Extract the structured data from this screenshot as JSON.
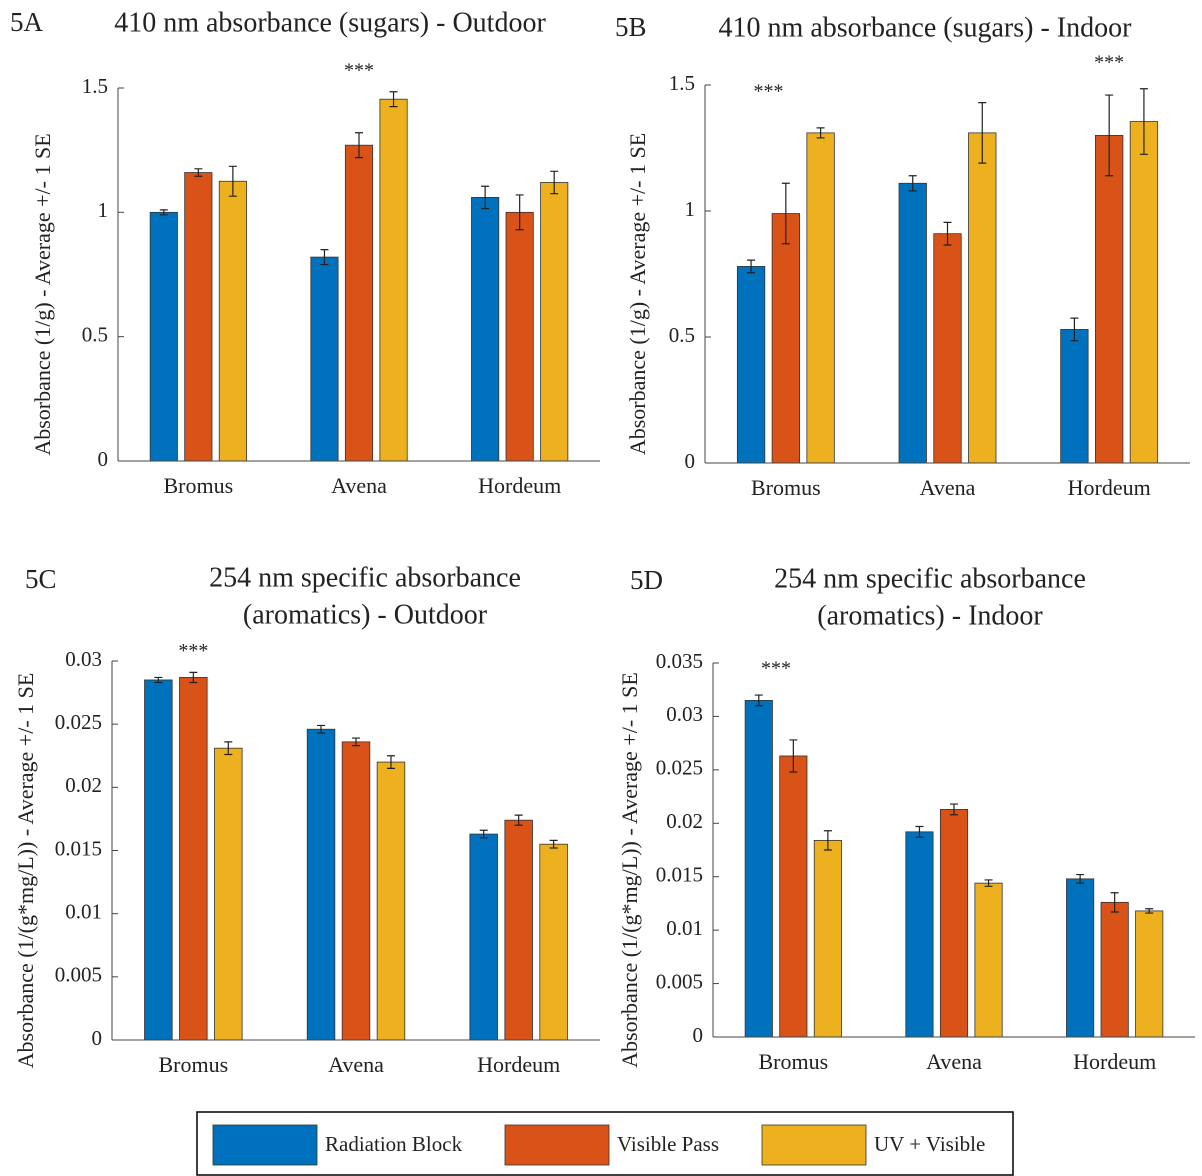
{
  "chart_data": [
    {
      "type": "bar",
      "label": "5A",
      "title": [
        "410 nm absorbance (sugars) - Outdoor"
      ],
      "y_label": "Absorbance (1/g) - Average +/- 1 SE",
      "categories": [
        "Bromus",
        "Avena",
        "Hordeum"
      ],
      "series": [
        {
          "name": "Radiation Block",
          "color": "#0072bd",
          "values": [
            1.0,
            0.82,
            1.06
          ],
          "errors": [
            0.01,
            0.03,
            0.045
          ]
        },
        {
          "name": "Visible Pass",
          "color": "#d95319",
          "values": [
            1.16,
            1.27,
            1.0
          ],
          "errors": [
            0.015,
            0.05,
            0.07
          ]
        },
        {
          "name": "UV + Visible",
          "color": "#edb120",
          "values": [
            1.125,
            1.455,
            1.12
          ],
          "errors": [
            0.06,
            0.03,
            0.045
          ]
        }
      ],
      "ylim": [
        0,
        1.5
      ],
      "yticks": [
        0,
        0.5,
        1,
        1.5
      ],
      "annotations": [
        {
          "text": "***"
        }
      ]
    },
    {
      "type": "bar",
      "label": "5B",
      "title": [
        "410 nm absorbance (sugars) - Indoor"
      ],
      "y_label": "Absorbance (1/g) - Average +/- 1 SE",
      "categories": [
        "Bromus",
        "Avena",
        "Hordeum"
      ],
      "series": [
        {
          "color": "#0072bd",
          "values": [
            0.78,
            1.11,
            0.53
          ],
          "errors": [
            0.025,
            0.03,
            0.045
          ]
        },
        {
          "color": "#d95319",
          "values": [
            0.99,
            0.91,
            1.3
          ],
          "errors": [
            0.12,
            0.045,
            0.16
          ]
        },
        {
          "color": "#edb120",
          "values": [
            1.31,
            1.31,
            1.355
          ],
          "errors": [
            0.02,
            0.12,
            0.13
          ]
        }
      ],
      "ylim": [
        0,
        1.5
      ],
      "yticks": [
        0,
        0.5,
        1,
        1.5
      ],
      "annotations": [
        {
          "text": "***"
        },
        {
          "text": "***"
        }
      ]
    },
    {
      "type": "bar",
      "label": "5C",
      "title": [
        "254 nm specific absorbance",
        "(aromatics) - Outdoor"
      ],
      "y_label": "Absorbance (1/(g*mg/L)) - Average +/- 1 SE",
      "categories": [
        "Bromus",
        "Avena",
        "Hordeum"
      ],
      "series": [
        {
          "color": "#0072bd",
          "values": [
            0.0285,
            0.0246,
            0.0163
          ],
          "errors": [
            0.0002,
            0.0003,
            0.0003
          ]
        },
        {
          "color": "#d95319",
          "values": [
            0.0287,
            0.0236,
            0.0174
          ],
          "errors": [
            0.0004,
            0.0003,
            0.0004
          ]
        },
        {
          "color": "#edb120",
          "values": [
            0.0231,
            0.022,
            0.0155
          ],
          "errors": [
            0.0005,
            0.0005,
            0.0003
          ]
        }
      ],
      "ylim": [
        0,
        0.03
      ],
      "yticks": [
        0,
        0.005,
        0.01,
        0.015,
        0.02,
        0.025,
        0.03
      ],
      "annotations": [
        {
          "text": "***"
        }
      ]
    },
    {
      "type": "bar",
      "label": "5D",
      "title": [
        "254 nm specific absorbance",
        "(aromatics) - Indoor"
      ],
      "y_label": "Absorbance (1/(g*mg/L)) - Average +/- 1 SE",
      "categories": [
        "Bromus",
        "Avena",
        "Hordeum"
      ],
      "series": [
        {
          "color": "#0072bd",
          "values": [
            0.0315,
            0.0192,
            0.0148
          ],
          "errors": [
            0.0005,
            0.0005,
            0.0004
          ]
        },
        {
          "color": "#d95319",
          "values": [
            0.0263,
            0.0213,
            0.0126
          ],
          "errors": [
            0.0015,
            0.0005,
            0.0009
          ]
        },
        {
          "color": "#edb120",
          "values": [
            0.0184,
            0.0144,
            0.0118
          ],
          "errors": [
            0.0009,
            0.0003,
            0.0002
          ]
        }
      ],
      "ylim": [
        0,
        0.035
      ],
      "yticks": [
        0,
        0.005,
        0.01,
        0.015,
        0.02,
        0.025,
        0.03,
        0.035
      ],
      "annotations": [
        {
          "text": "***"
        }
      ]
    }
  ]
}
